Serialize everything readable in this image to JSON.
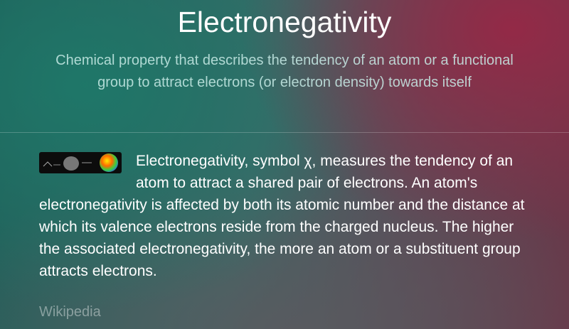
{
  "title": "Electronegativity",
  "subtitle": "Chemical property that describes the tendency of an atom or a functional group to attract electrons (or electron density) towards itself",
  "body": "Electronegativity, symbol χ, measures the tendency of an atom to attract a shared pair of electrons. An atom's electronegativity is affected by both its atomic number and the distance at which its valence electrons reside from the charged nucleus. The higher the associated electronegativity, the more an atom or a substituent group attracts electrons.",
  "source": "Wikipedia"
}
